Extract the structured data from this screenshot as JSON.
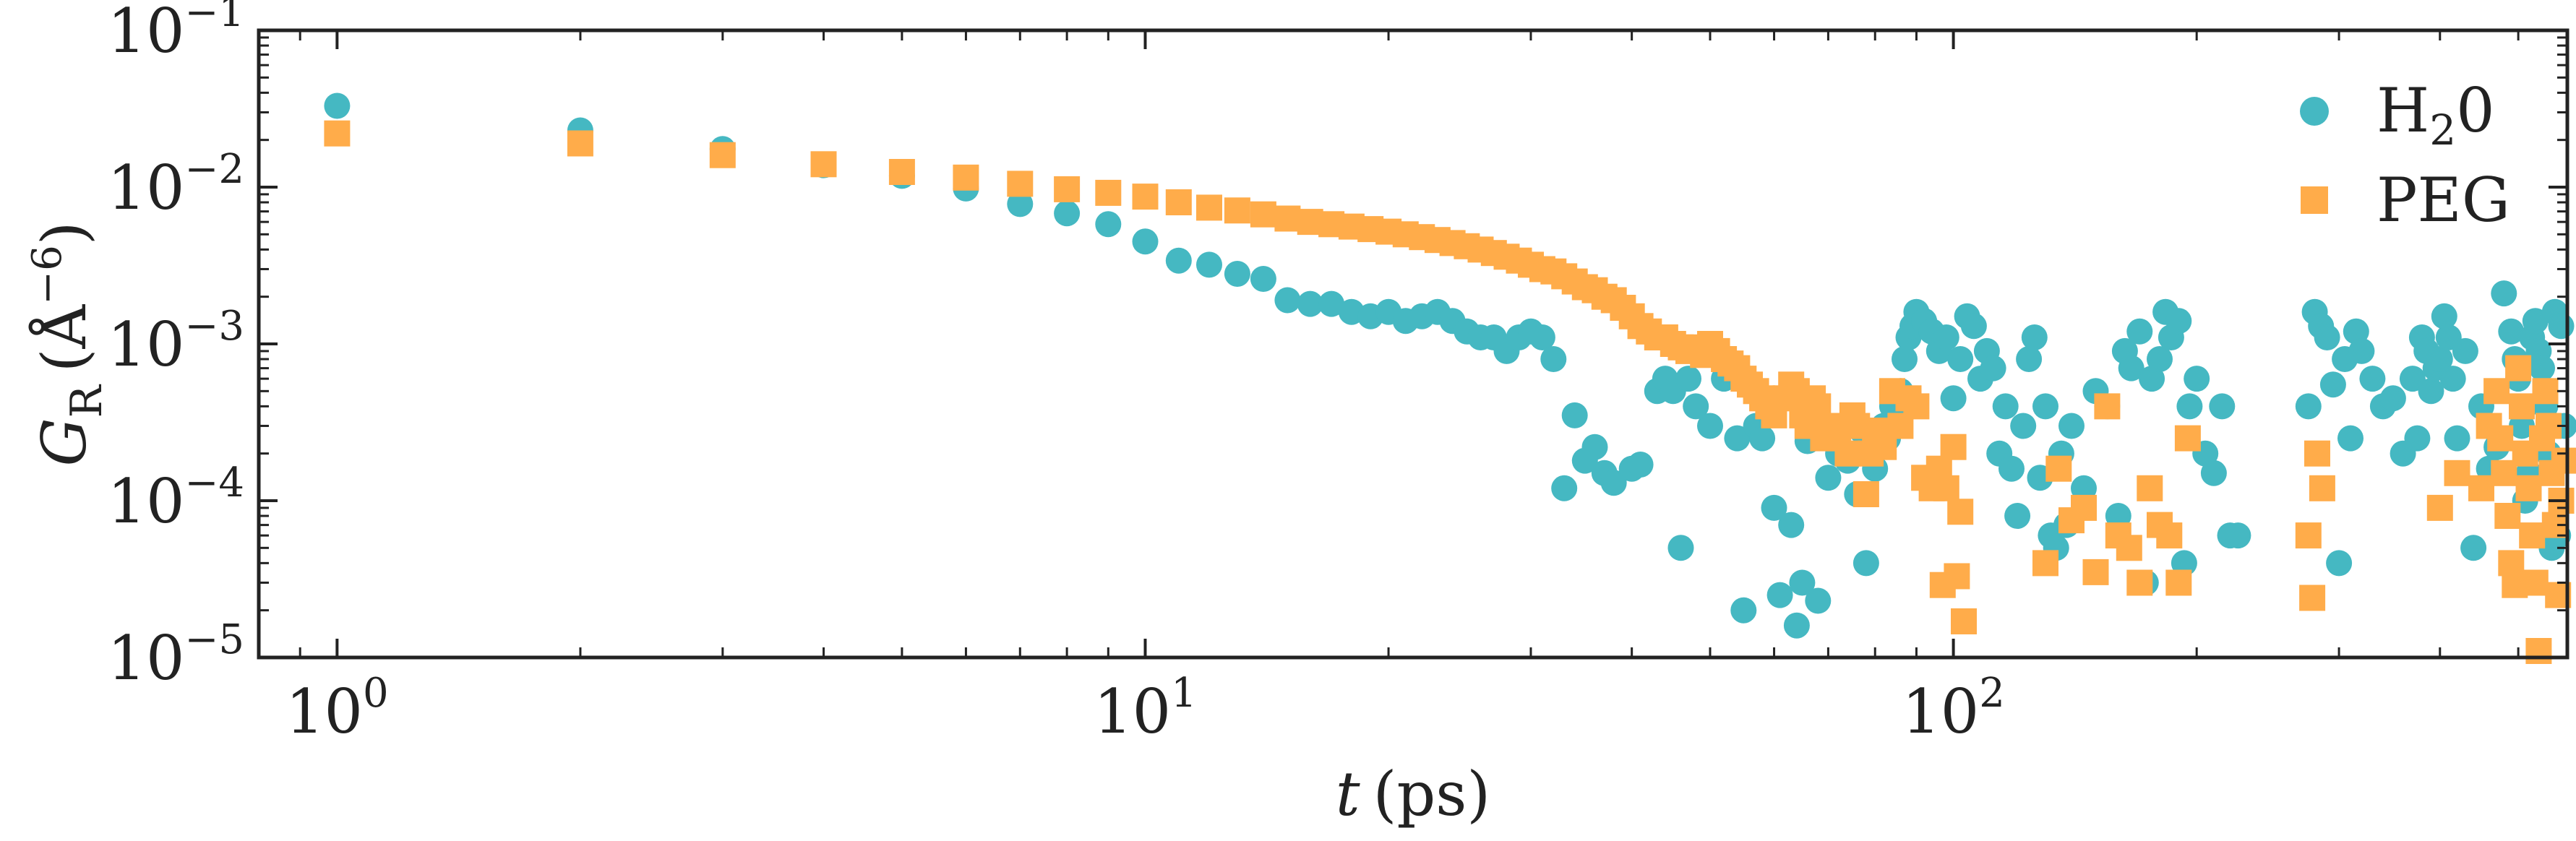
{
  "chart_data": {
    "type": "scatter",
    "title": "",
    "xscale": "log",
    "yscale": "log",
    "xlim": [
      0.8,
      575
    ],
    "ylim": [
      1e-05,
      0.1
    ],
    "xlabel": {
      "symbol": "t",
      "unit": "(ps)"
    },
    "ylabel": {
      "symbol": "G",
      "subscript": "R",
      "unit_open": "(Å",
      "unit_exp": "−6",
      "unit_close": ")"
    },
    "xticks": [
      {
        "value": 1,
        "base": "10",
        "exp": "0"
      },
      {
        "value": 10,
        "base": "10",
        "exp": "1"
      },
      {
        "value": 100,
        "base": "10",
        "exp": "2"
      }
    ],
    "yticks": [
      {
        "value": 0.1,
        "base": "10",
        "exp": "−1"
      },
      {
        "value": 0.01,
        "base": "10",
        "exp": "−2"
      },
      {
        "value": 0.001,
        "base": "10",
        "exp": "−3"
      },
      {
        "value": 0.0001,
        "base": "10",
        "exp": "−4"
      },
      {
        "value": 1e-05,
        "base": "10",
        "exp": "−5"
      }
    ],
    "legend": {
      "position": "top-right"
    },
    "series": [
      {
        "name": "H",
        "name_sub": "2",
        "name_tail": "0",
        "marker": "circle",
        "color": "#45b8c2",
        "points": [
          [
            1,
            0.033
          ],
          [
            2,
            0.023
          ],
          [
            3,
            0.0175
          ],
          [
            4,
            0.0138
          ],
          [
            5,
            0.0118
          ],
          [
            6,
            0.0098
          ],
          [
            7,
            0.0078
          ],
          [
            8,
            0.0068
          ],
          [
            9,
            0.0058
          ],
          [
            10,
            0.0045
          ],
          [
            11,
            0.0034
          ],
          [
            12,
            0.0032
          ],
          [
            13,
            0.0028
          ],
          [
            14,
            0.0026
          ],
          [
            15,
            0.0019
          ],
          [
            16,
            0.0018
          ],
          [
            17,
            0.0018
          ],
          [
            18,
            0.0016
          ],
          [
            19,
            0.0015
          ],
          [
            20,
            0.0016
          ],
          [
            21,
            0.0014
          ],
          [
            22,
            0.0015
          ],
          [
            23,
            0.0016
          ],
          [
            24,
            0.0014
          ],
          [
            25,
            0.0012
          ],
          [
            26,
            0.0011
          ],
          [
            27,
            0.0011
          ],
          [
            28,
            0.0009
          ],
          [
            29,
            0.0011
          ],
          [
            30,
            0.0012
          ],
          [
            31,
            0.0011
          ],
          [
            32,
            0.0008
          ],
          [
            33,
            0.00012
          ],
          [
            34,
            0.00035
          ],
          [
            35,
            0.00018
          ],
          [
            36,
            0.00022
          ],
          [
            37,
            0.00015
          ],
          [
            38,
            0.00013
          ],
          [
            40,
            0.00016
          ],
          [
            41,
            0.00017
          ],
          [
            43,
            0.0005
          ],
          [
            44,
            0.0006
          ],
          [
            45,
            0.0005
          ],
          [
            46,
            5e-05
          ],
          [
            47,
            0.0006
          ],
          [
            48,
            0.0004
          ],
          [
            50,
            0.0003
          ],
          [
            52,
            0.0006
          ],
          [
            54,
            0.00025
          ],
          [
            55,
            2e-05
          ],
          [
            57,
            0.0003
          ],
          [
            58,
            0.00025
          ],
          [
            60,
            9e-05
          ],
          [
            61,
            2.5e-05
          ],
          [
            63,
            7e-05
          ],
          [
            64,
            1.6e-05
          ],
          [
            65,
            3e-05
          ],
          [
            66,
            0.00024
          ],
          [
            68,
            2.3e-05
          ],
          [
            70,
            0.00014
          ],
          [
            72,
            0.0002
          ],
          [
            74,
            0.00018
          ],
          [
            76,
            0.00011
          ],
          [
            77,
            0.00028
          ],
          [
            78,
            4e-05
          ],
          [
            80,
            0.00016
          ],
          [
            82,
            0.0003
          ],
          [
            83,
            0.00025
          ],
          [
            84,
            0.0004
          ],
          [
            86,
            0.0005
          ],
          [
            87,
            0.0008
          ],
          [
            88,
            0.0011
          ],
          [
            89,
            0.0013
          ],
          [
            90,
            0.0016
          ],
          [
            92,
            0.0014
          ],
          [
            94,
            0.0012
          ],
          [
            96,
            0.0009
          ],
          [
            98,
            0.0011
          ],
          [
            100,
            0.00045
          ],
          [
            102,
            0.0008
          ],
          [
            104,
            0.0015
          ],
          [
            106,
            0.0013
          ],
          [
            108,
            0.0006
          ],
          [
            110,
            0.0009
          ],
          [
            112,
            0.0007
          ],
          [
            114,
            0.0002
          ],
          [
            116,
            0.0004
          ],
          [
            118,
            0.00016
          ],
          [
            120,
            8e-05
          ],
          [
            122,
            0.0003
          ],
          [
            124,
            0.0008
          ],
          [
            126,
            0.0011
          ],
          [
            128,
            0.00014
          ],
          [
            130,
            0.0004
          ],
          [
            132,
            6e-05
          ],
          [
            134,
            5e-05
          ],
          [
            136,
            0.0002
          ],
          [
            138,
            7e-05
          ],
          [
            140,
            0.0003
          ],
          [
            145,
            0.00012
          ],
          [
            150,
            0.0005
          ],
          [
            155,
            0.0004
          ],
          [
            160,
            8e-05
          ],
          [
            163,
            0.0009
          ],
          [
            166,
            0.0007
          ],
          [
            170,
            0.0012
          ],
          [
            173,
            3e-05
          ],
          [
            176,
            0.0006
          ],
          [
            180,
            0.0008
          ],
          [
            183,
            0.0016
          ],
          [
            186,
            0.0011
          ],
          [
            190,
            0.0014
          ],
          [
            193,
            4e-05
          ],
          [
            196,
            0.0004
          ],
          [
            200,
            0.0006
          ],
          [
            205,
            0.0002
          ],
          [
            210,
            0.00015
          ],
          [
            215,
            0.0004
          ],
          [
            220,
            6e-05
          ],
          [
            225,
            6e-05
          ],
          [
            275,
            0.0004
          ],
          [
            280,
            0.0016
          ],
          [
            285,
            0.0013
          ],
          [
            290,
            0.0011
          ],
          [
            295,
            0.00055
          ],
          [
            300,
            4e-05
          ],
          [
            305,
            0.0008
          ],
          [
            310,
            0.00025
          ],
          [
            315,
            0.0012
          ],
          [
            320,
            0.0009
          ],
          [
            330,
            0.0006
          ],
          [
            340,
            0.0004
          ],
          [
            350,
            0.00045
          ],
          [
            360,
            0.0002
          ],
          [
            370,
            0.0006
          ],
          [
            375,
            0.00025
          ],
          [
            380,
            0.0011
          ],
          [
            385,
            0.0009
          ],
          [
            390,
            0.0005
          ],
          [
            395,
            0.0007
          ],
          [
            400,
            0.0008
          ],
          [
            405,
            0.0015
          ],
          [
            410,
            0.0011
          ],
          [
            415,
            0.0006
          ],
          [
            420,
            0.00025
          ],
          [
            430,
            0.0009
          ],
          [
            440,
            5e-05
          ],
          [
            450,
            0.0004
          ],
          [
            460,
            0.00016
          ],
          [
            470,
            0.00022
          ],
          [
            480,
            0.0021
          ],
          [
            490,
            0.0012
          ],
          [
            495,
            0.0008
          ],
          [
            500,
            0.0006
          ],
          [
            505,
            0.0003
          ],
          [
            510,
            0.0001
          ],
          [
            515,
            0.00015
          ],
          [
            520,
            0.0011
          ],
          [
            525,
            0.0014
          ],
          [
            530,
            0.0009
          ],
          [
            535,
            0.0007
          ],
          [
            540,
            0.0004
          ],
          [
            545,
            0.0002
          ],
          [
            550,
            5e-05
          ],
          [
            555,
            0.0016
          ],
          [
            560,
            6e-05
          ],
          [
            565,
            0.0013
          ],
          [
            570,
            0.0003
          ]
        ]
      },
      {
        "name": "PEG",
        "marker": "square",
        "color": "#ffac4a",
        "points": [
          [
            1,
            0.022
          ],
          [
            2,
            0.019
          ],
          [
            3,
            0.016
          ],
          [
            4,
            0.014
          ],
          [
            5,
            0.0125
          ],
          [
            6,
            0.0115
          ],
          [
            7,
            0.0105
          ],
          [
            8,
            0.0097
          ],
          [
            9,
            0.0092
          ],
          [
            10,
            0.0087
          ],
          [
            11,
            0.008
          ],
          [
            12,
            0.0074
          ],
          [
            13,
            0.0071
          ],
          [
            14,
            0.0067
          ],
          [
            15,
            0.0063
          ],
          [
            16,
            0.006
          ],
          [
            17,
            0.0058
          ],
          [
            18,
            0.0056
          ],
          [
            19,
            0.0054
          ],
          [
            20,
            0.0052
          ],
          [
            21,
            0.005
          ],
          [
            22,
            0.0048
          ],
          [
            23,
            0.0046
          ],
          [
            24,
            0.0044
          ],
          [
            25,
            0.0042
          ],
          [
            26,
            0.004
          ],
          [
            27,
            0.0038
          ],
          [
            28,
            0.0036
          ],
          [
            29,
            0.0034
          ],
          [
            30,
            0.0032
          ],
          [
            31,
            0.003
          ],
          [
            32,
            0.0029
          ],
          [
            33,
            0.0027
          ],
          [
            34,
            0.0025
          ],
          [
            35,
            0.0023
          ],
          [
            36,
            0.0022
          ],
          [
            37,
            0.002
          ],
          [
            38,
            0.0019
          ],
          [
            39,
            0.0017
          ],
          [
            40,
            0.0015
          ],
          [
            41,
            0.0013
          ],
          [
            42,
            0.0012
          ],
          [
            43,
            0.0011
          ],
          [
            44,
            0.0011
          ],
          [
            45,
            0.001
          ],
          [
            46,
            0.00095
          ],
          [
            47,
            0.0009
          ],
          [
            48,
            0.00095
          ],
          [
            49,
            0.00085
          ],
          [
            50,
            0.001
          ],
          [
            51,
            0.0009
          ],
          [
            52,
            0.0008
          ],
          [
            53,
            0.00075
          ],
          [
            54,
            0.0007
          ],
          [
            55,
            0.0006
          ],
          [
            56,
            0.00055
          ],
          [
            57,
            0.0005
          ],
          [
            58,
            0.00045
          ],
          [
            59,
            0.0004
          ],
          [
            60,
            0.00035
          ],
          [
            62,
            0.00045
          ],
          [
            63,
            0.00055
          ],
          [
            64,
            0.0005
          ],
          [
            65,
            0.00035
          ],
          [
            66,
            0.0003
          ],
          [
            67,
            0.00045
          ],
          [
            68,
            0.0004
          ],
          [
            69,
            0.00025
          ],
          [
            70,
            0.0003
          ],
          [
            72,
            0.00025
          ],
          [
            74,
            0.0002
          ],
          [
            75,
            0.00035
          ],
          [
            76,
            0.0003
          ],
          [
            78,
            0.00011
          ],
          [
            79,
            0.0002
          ],
          [
            80,
            0.00028
          ],
          [
            82,
            0.00022
          ],
          [
            84,
            0.0005
          ],
          [
            86,
            0.0003
          ],
          [
            88,
            0.00045
          ],
          [
            90,
            0.0004
          ],
          [
            92,
            0.00014
          ],
          [
            94,
            0.00012
          ],
          [
            96,
            0.00016
          ],
          [
            97,
            2.9e-05
          ],
          [
            98,
            0.00012
          ],
          [
            100,
            0.00022
          ],
          [
            101,
            3.3e-05
          ],
          [
            102,
            8.5e-05
          ],
          [
            103,
            1.7e-05
          ],
          [
            130,
            4e-05
          ],
          [
            135,
            0.00016
          ],
          [
            140,
            7.5e-05
          ],
          [
            145,
            9e-05
          ],
          [
            150,
            3.5e-05
          ],
          [
            155,
            0.0004
          ],
          [
            160,
            6e-05
          ],
          [
            165,
            5e-05
          ],
          [
            170,
            3e-05
          ],
          [
            175,
            0.00012
          ],
          [
            180,
            7e-05
          ],
          [
            185,
            6e-05
          ],
          [
            190,
            3e-05
          ],
          [
            195,
            0.00025
          ],
          [
            275,
            6e-05
          ],
          [
            278,
            2.4e-05
          ],
          [
            282,
            0.0002
          ],
          [
            286,
            0.00012
          ],
          [
            400,
            9e-05
          ],
          [
            420,
            0.00015
          ],
          [
            450,
            0.00012
          ],
          [
            460,
            0.0003
          ],
          [
            470,
            0.0005
          ],
          [
            475,
            0.00025
          ],
          [
            480,
            0.00015
          ],
          [
            485,
            8e-05
          ],
          [
            490,
            4e-05
          ],
          [
            495,
            2.9e-05
          ],
          [
            500,
            0.0007
          ],
          [
            505,
            0.0004
          ],
          [
            510,
            0.0002
          ],
          [
            515,
            0.00012
          ],
          [
            520,
            6e-05
          ],
          [
            525,
            3e-05
          ],
          [
            530,
            1.1e-05
          ],
          [
            535,
            0.00025
          ],
          [
            540,
            0.0005
          ],
          [
            545,
            0.0003
          ],
          [
            550,
            0.00015
          ],
          [
            555,
            7e-05
          ],
          [
            560,
            2.5e-05
          ],
          [
            565,
            0.0001
          ],
          [
            570,
            0.00018
          ]
        ]
      }
    ]
  }
}
